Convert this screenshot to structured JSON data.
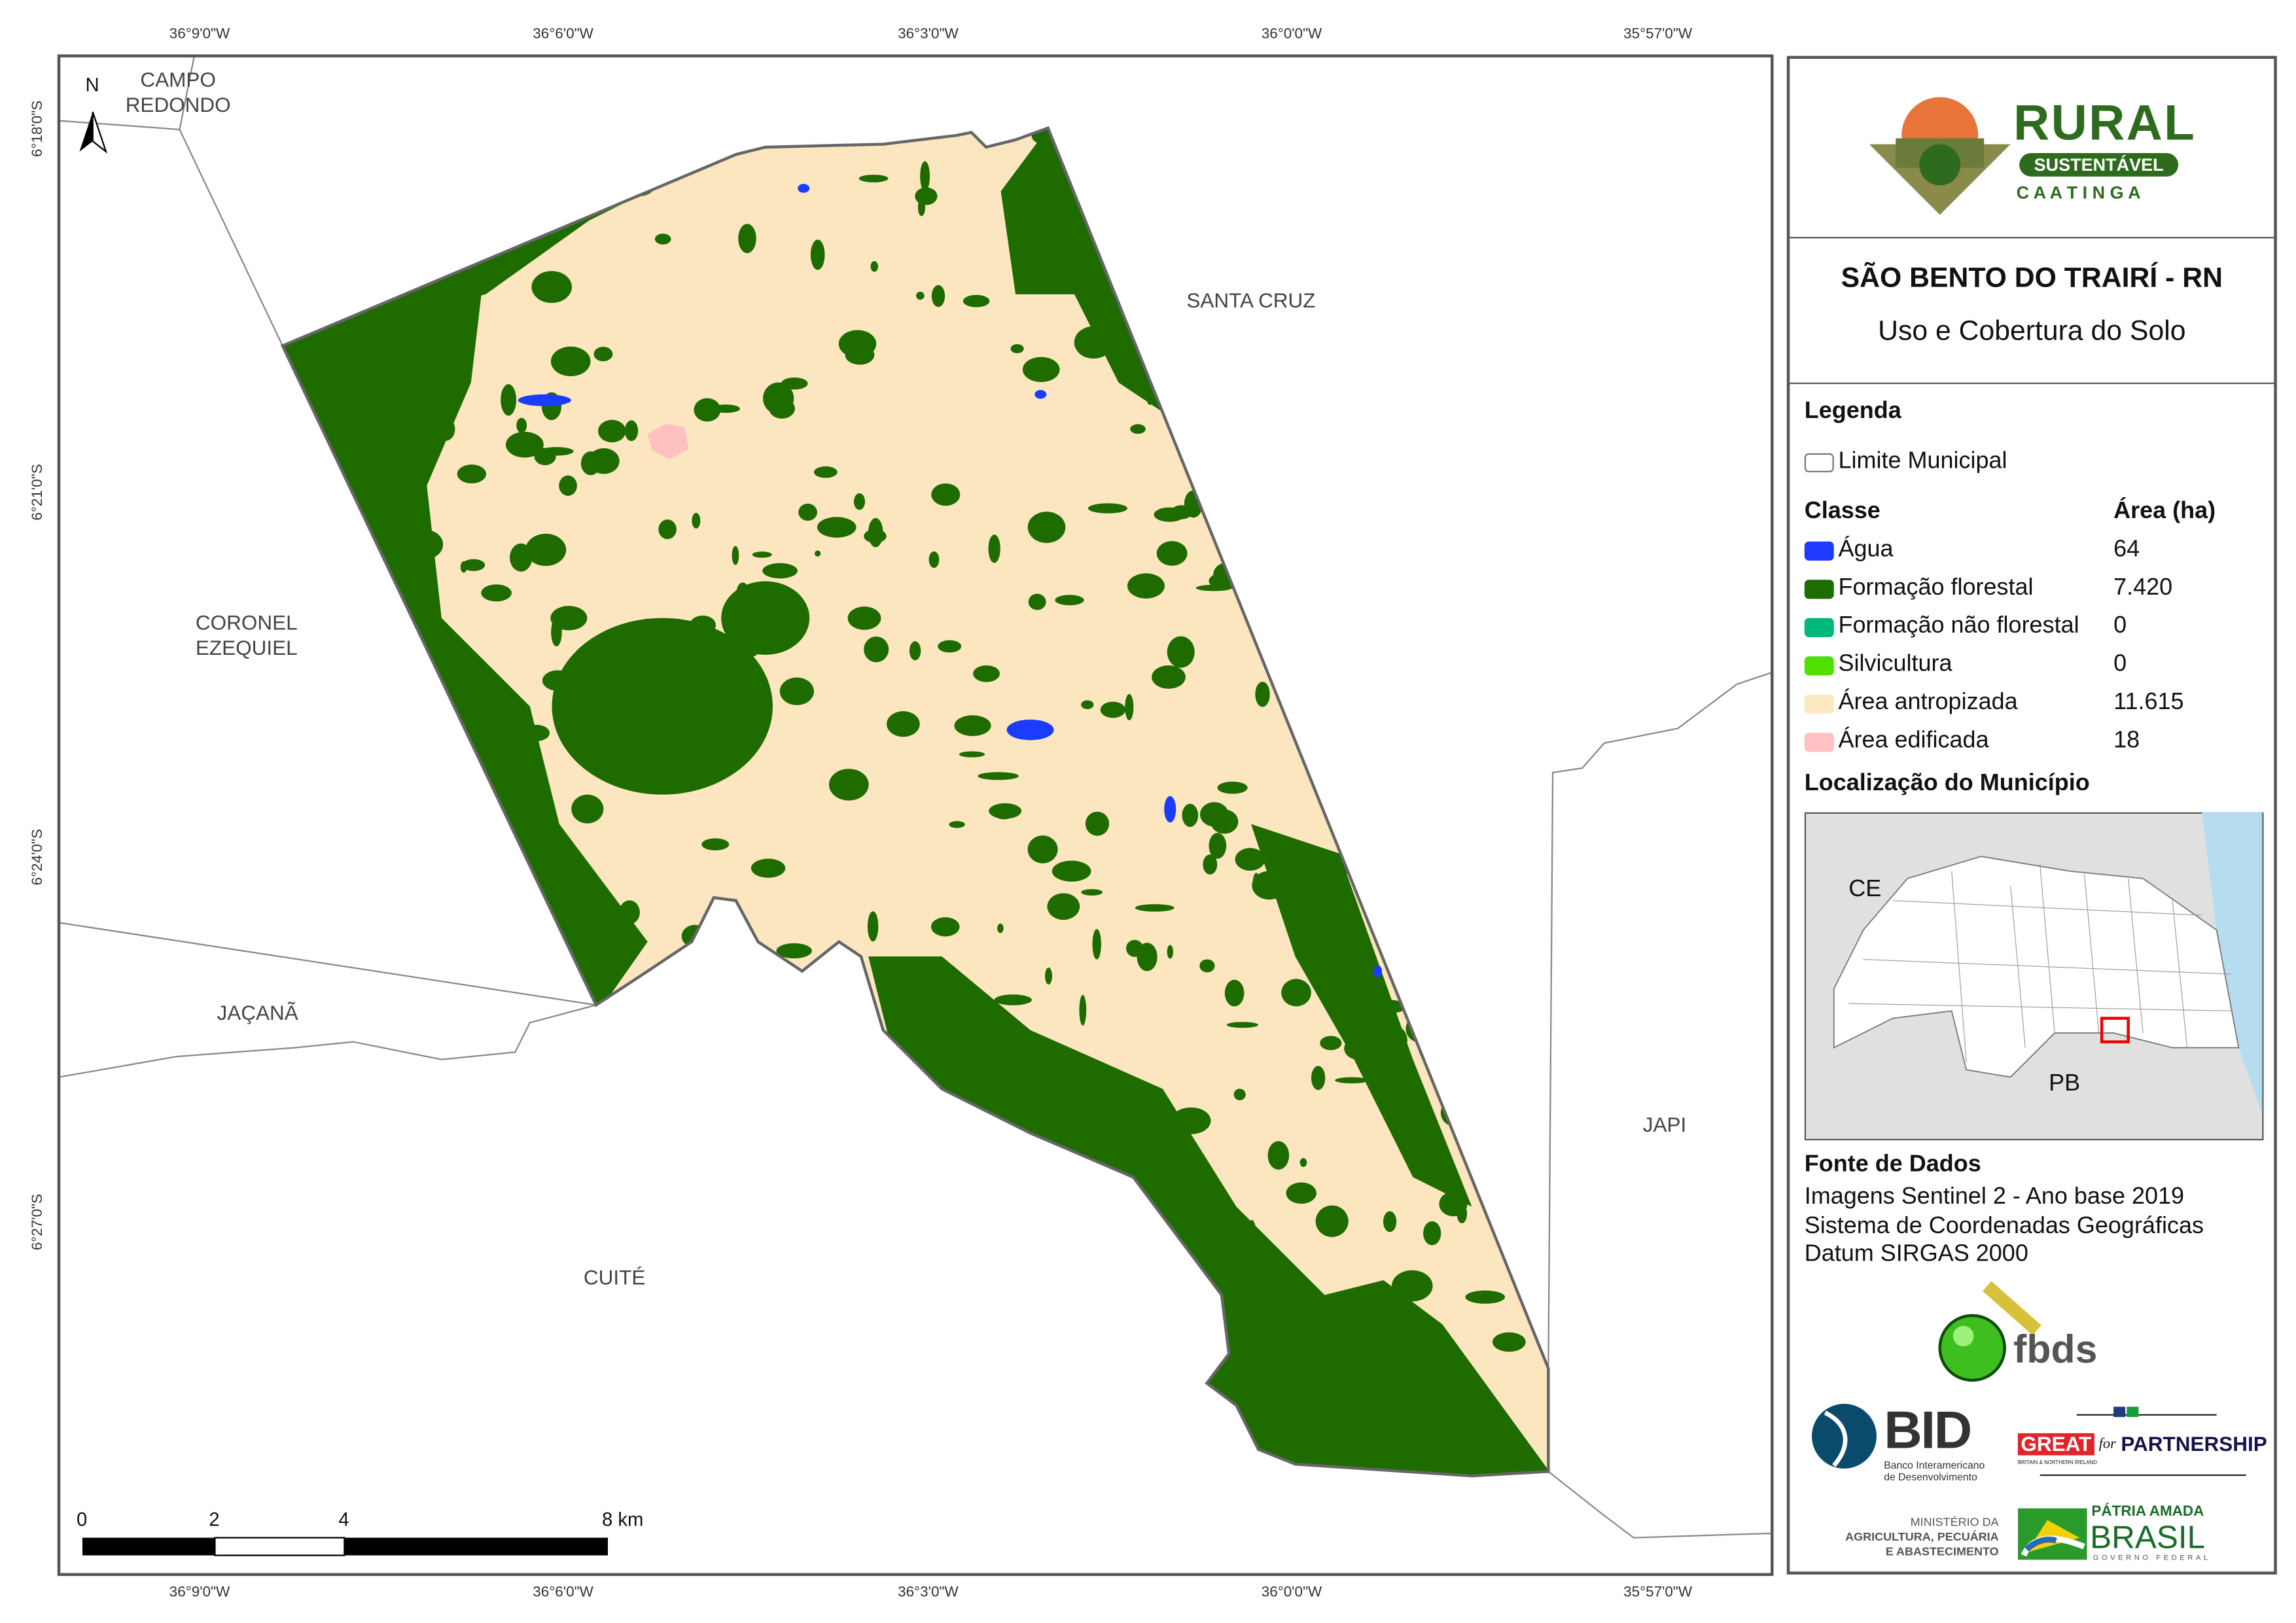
{
  "map": {
    "lon_labels": [
      "36°9'0\"W",
      "36°6'0\"W",
      "36°3'0\"W",
      "36°0'0\"W",
      "35°57'0\"W"
    ],
    "lat_labels": [
      "6°18'0\"S",
      "6°21'0\"S",
      "6°24'0\"S",
      "6°27'0\"S"
    ],
    "places": {
      "campo_redondo": "CAMPO\nREDONDO",
      "santa_cruz": "SANTA CRUZ",
      "coronel_ezequiel": "CORONEL\nEZEQUIEL",
      "jacana": "JAÇANÃ",
      "cuite": "CUITÉ",
      "japi": "JAPI"
    },
    "north_label": "N",
    "scale": {
      "labels": [
        "0",
        "2",
        "4",
        "8 km"
      ]
    },
    "colors": {
      "forest": "#1e6b00",
      "anthropized": "#fce6c0",
      "water": "#1a3cff",
      "built": "#ffc0c0",
      "boundary": "#666666"
    }
  },
  "panel": {
    "logo": {
      "rural": "RURAL",
      "sustentavel": "SUSTENTÁVEL",
      "caatinga": "C A A T I N G A"
    },
    "title": "SÃO BENTO DO TRAIRÍ - RN",
    "subtitle": "Uso e Cobertura do Solo",
    "legend": {
      "heading": "Legenda",
      "boundary_label": "Limite Municipal",
      "class_header": "Classe",
      "area_header": "Área (ha)",
      "classes": [
        {
          "label": "Água",
          "area": "64",
          "color": "#1f3bff"
        },
        {
          "label": "Formação florestal",
          "area": "7.420",
          "color": "#1e6b00"
        },
        {
          "label": "Formação não florestal",
          "area": "0",
          "color": "#00b87a"
        },
        {
          "label": "Silvicultura",
          "area": "0",
          "color": "#4fe000"
        },
        {
          "label": "Área antropizada",
          "area": "11.615",
          "color": "#fde9c3"
        },
        {
          "label": "Área edificada",
          "area": "18",
          "color": "#ffc1c1"
        }
      ]
    },
    "location": {
      "heading": "Localização do Município",
      "ce": "CE",
      "pb": "PB"
    },
    "source": {
      "heading": "Fonte de Dados",
      "lines": [
        "Imagens Sentinel 2 - Ano base 2019",
        "Sistema de Coordenadas Geográficas",
        "Datum SIRGAS 2000"
      ]
    },
    "logos": {
      "fbds": "fbds",
      "bid": "BID",
      "bid_sub1": "Banco Interamericano",
      "bid_sub2": "de Desenvolvimento",
      "great": "GREAT",
      "great_for": "for",
      "great_partnership": "PARTNERSHIP",
      "great_sub": "BRITAIN & NORTHERN IRELAND",
      "ministerio1": "MINISTÉRIO DA",
      "ministerio2": "AGRICULTURA, PECUÁRIA",
      "ministerio3": "E ABASTECIMENTO",
      "patria": "PÁTRIA AMADA",
      "brasil": "BRASIL",
      "governo": "GOVERNO FEDERAL"
    }
  }
}
